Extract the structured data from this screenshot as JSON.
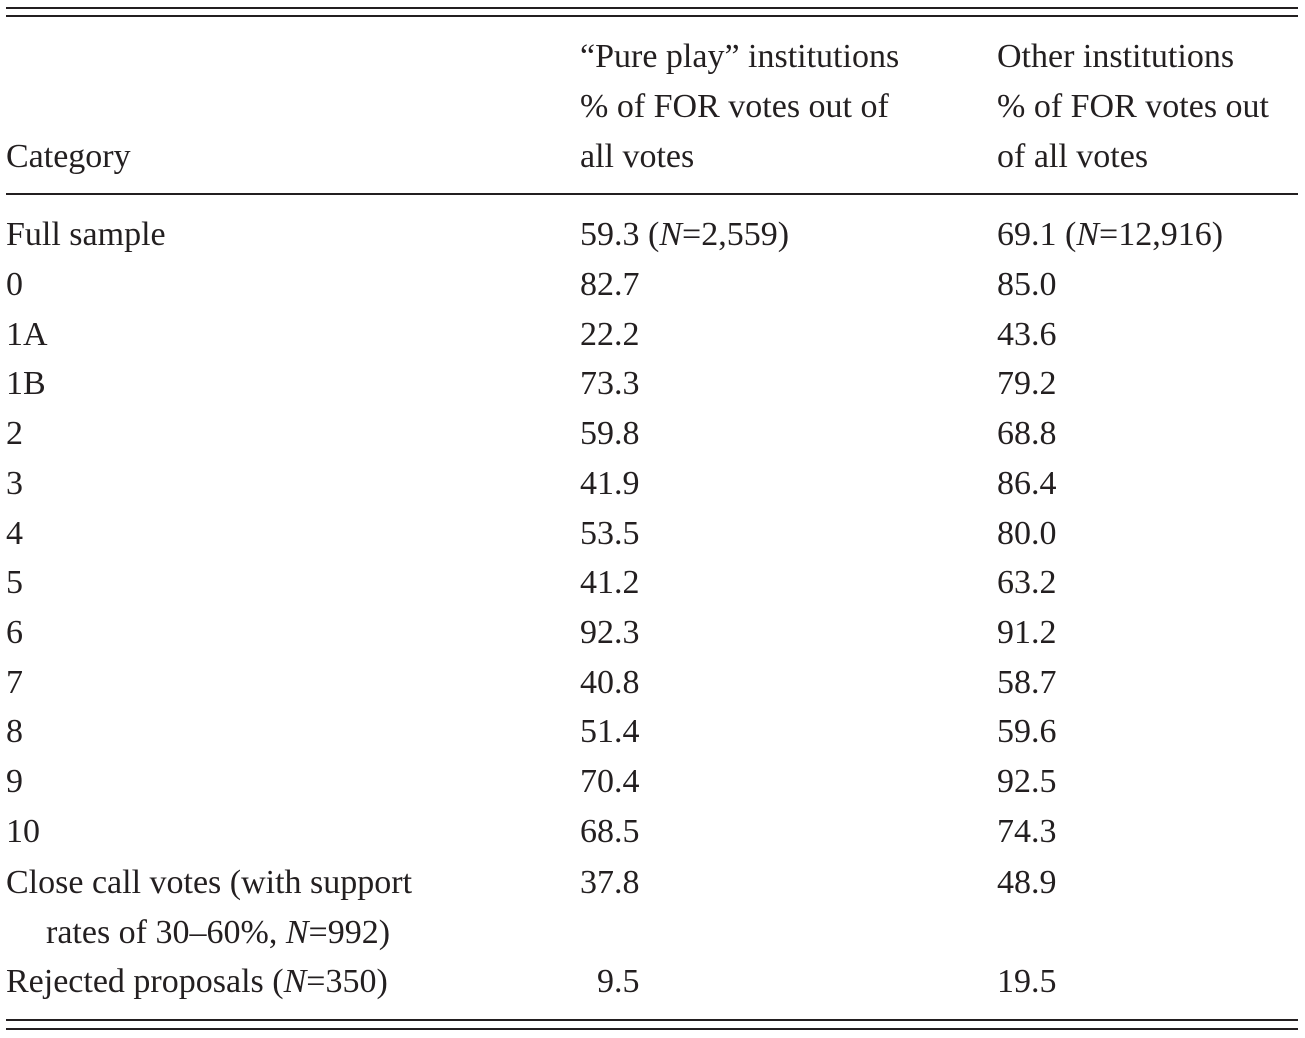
{
  "header": {
    "category": "Category",
    "pure_play": [
      "“Pure play” institutions",
      "% of FOR votes out of",
      "all votes"
    ],
    "other": [
      "Other institutions",
      "% of FOR votes out",
      "of all votes"
    ]
  },
  "rows": [
    {
      "category": "Full sample",
      "pure": "59.3",
      "pure_n_prefix": " (",
      "pure_n_var": "N",
      "pure_n_value": "=2,559)",
      "other": "69.1",
      "other_n_prefix": " (",
      "other_n_var": "N",
      "other_n_value": "=12,916)"
    },
    {
      "category": "0",
      "pure": "82.7",
      "other": "85.0"
    },
    {
      "category": "1A",
      "pure": "22.2",
      "other": "43.6"
    },
    {
      "category": "1B",
      "pure": "73.3",
      "other": "79.2"
    },
    {
      "category": "2",
      "pure": "59.8",
      "other": "68.8"
    },
    {
      "category": "3",
      "pure": "41.9",
      "other": "86.4"
    },
    {
      "category": "4",
      "pure": "53.5",
      "other": "80.0"
    },
    {
      "category": "5",
      "pure": "41.2",
      "other": "63.2"
    },
    {
      "category": "6",
      "pure": "92.3",
      "other": "91.2"
    },
    {
      "category": "7",
      "pure": "40.8",
      "other": "58.7"
    },
    {
      "category": "8",
      "pure": "51.4",
      "other": "59.6"
    },
    {
      "category": "9",
      "pure": "70.4",
      "other": "92.5"
    },
    {
      "category": "10",
      "pure": "68.5",
      "other": "74.3"
    }
  ],
  "close_call": {
    "line1": "Close call votes (with support",
    "line2_prefix": "rates of 30–60%, ",
    "line2_var": "N",
    "line2_suffix": "=992)",
    "pure": "37.8",
    "other": "48.9"
  },
  "rejected": {
    "prefix": "Rejected proposals (",
    "var": "N",
    "suffix": "=350)",
    "pure": "  9.5",
    "other": "19.5"
  }
}
